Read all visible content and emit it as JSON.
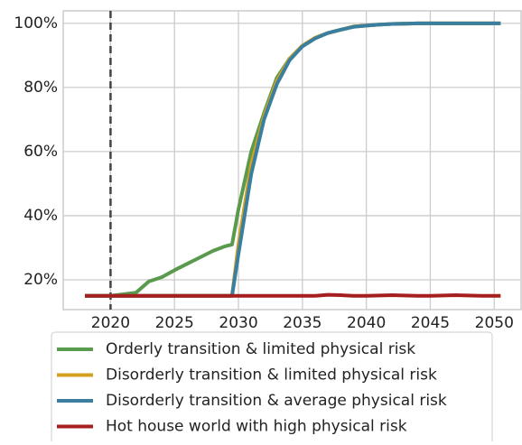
{
  "chart_data": {
    "type": "line",
    "x": [
      2018,
      2019,
      2020,
      2021,
      2022,
      2023,
      2024,
      2025,
      2026,
      2027,
      2028,
      2029,
      2029.5,
      2030,
      2031,
      2032,
      2033,
      2034,
      2035,
      2036,
      2037,
      2038,
      2039,
      2040,
      2041,
      2042,
      2043,
      2044,
      2045,
      2046,
      2047,
      2048,
      2049,
      2050,
      2050.5
    ],
    "series": [
      {
        "name": "Orderly transition & limited physical risk",
        "color": "#5a9a4c",
        "values": [
          15,
          15,
          15,
          15.5,
          16,
          19.5,
          20.8,
          23,
          25,
          27,
          29,
          30.5,
          31,
          42,
          60,
          72,
          83,
          89,
          93,
          95.5,
          97,
          98,
          99,
          99.3,
          99.6,
          99.8,
          99.9,
          100,
          100,
          100,
          100,
          100,
          100,
          100,
          100
        ]
      },
      {
        "name": "Disorderly transition & limited physical risk",
        "color": "#d4a020",
        "values": [
          15,
          15,
          15,
          15,
          15,
          15,
          15,
          15,
          15,
          15,
          15,
          15,
          15,
          31,
          56,
          71,
          82,
          89,
          93,
          95.5,
          97,
          98,
          99,
          99.3,
          99.6,
          99.8,
          99.9,
          100,
          100,
          100,
          100,
          100,
          100,
          100,
          100
        ]
      },
      {
        "name": "Disorderly transition & average physical risk",
        "color": "#3a7fa0",
        "values": [
          15,
          15,
          15,
          15,
          15,
          15,
          15,
          15,
          15,
          15,
          15,
          15,
          15,
          28,
          53,
          70,
          81,
          88.5,
          92.8,
          95.3,
          97,
          98,
          98.9,
          99.3,
          99.6,
          99.8,
          99.9,
          100,
          100,
          100,
          100,
          100,
          100,
          100,
          100
        ]
      },
      {
        "name": "Hot house world with high physical risk",
        "color": "#a51f1f",
        "values": [
          15,
          15,
          15,
          15,
          15,
          15,
          15,
          15,
          15,
          15,
          15,
          15,
          15,
          15,
          15,
          15,
          15,
          15,
          15,
          15,
          15.3,
          15.2,
          15,
          15,
          15.1,
          15.2,
          15.1,
          15,
          15,
          15.1,
          15.2,
          15.1,
          15,
          15,
          15
        ]
      }
    ],
    "xlim": [
      2016.3,
      2052.1
    ],
    "xticks": [
      2020,
      2025,
      2030,
      2035,
      2040,
      2045,
      2050
    ],
    "ylim": [
      10.7,
      103.9
    ],
    "yticks": [
      {
        "value": 20,
        "label": "20%"
      },
      {
        "value": 40,
        "label": "40%"
      },
      {
        "value": 60,
        "label": "60%"
      },
      {
        "value": 80,
        "label": "80%"
      },
      {
        "value": 100,
        "label": "100%"
      }
    ],
    "vline": 2020,
    "grid": true,
    "legend": "bottom"
  }
}
